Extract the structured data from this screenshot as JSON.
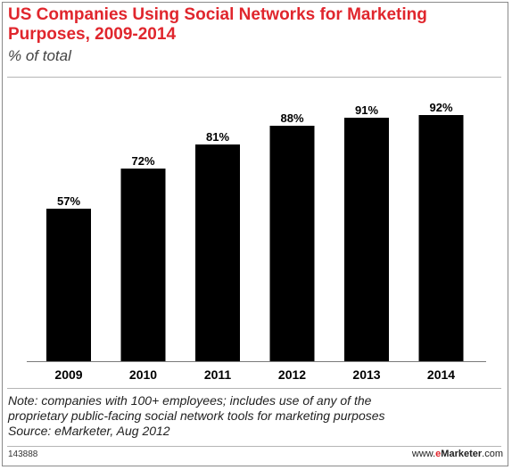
{
  "header": {
    "title_line1": "US Companies Using Social Networks for Marketing",
    "title_line2": "Purposes, 2009-2014",
    "subtitle": "% of total"
  },
  "chart_data": {
    "type": "bar",
    "categories": [
      "2009",
      "2010",
      "2011",
      "2012",
      "2013",
      "2014"
    ],
    "values": [
      57,
      72,
      81,
      88,
      91,
      92
    ],
    "data_labels": [
      "57%",
      "72%",
      "81%",
      "88%",
      "91%",
      "92%"
    ],
    "title": "US Companies Using Social Networks for Marketing Purposes, 2009-2014",
    "subtitle": "% of total",
    "xlabel": "",
    "ylabel": "",
    "ylim": [
      0,
      100
    ],
    "grid": false,
    "bar_color": "#000000"
  },
  "footer": {
    "note_line1": "Note: companies with 100+ employees; includes use of any of the",
    "note_line2": "proprietary public-facing social network tools for marketing purposes",
    "source": "Source: eMarketer, Aug 2012",
    "chart_id": "143888",
    "brand_prefix": "www.",
    "brand_e": "e",
    "brand_name": "Marketer",
    "brand_suffix": ".com"
  },
  "colors": {
    "title": "#e0262d",
    "bars": "#000000"
  }
}
